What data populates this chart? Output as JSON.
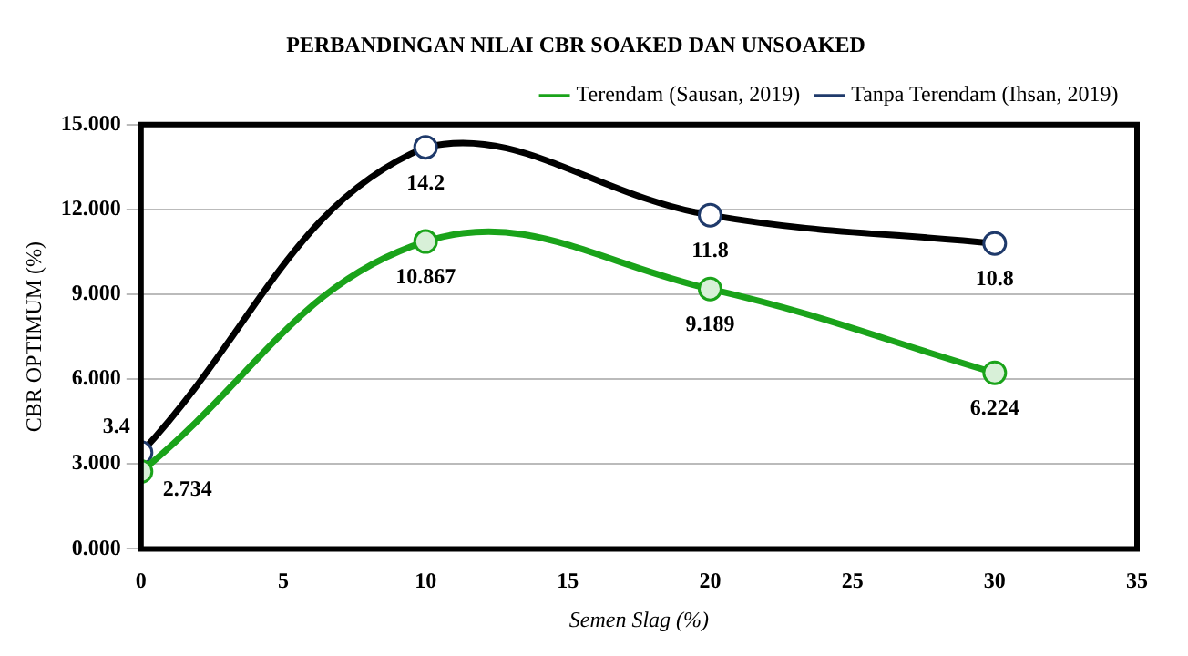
{
  "chart_data": {
    "type": "line",
    "title": "PERBANDINGAN NILAI CBR SOAKED DAN UNSOAKED",
    "xlabel": "Semen Slag (%)",
    "ylabel": "CBR OPTIMUM (%)",
    "x": [
      0,
      10,
      20,
      30
    ],
    "series": [
      {
        "name": "Terendam (Sausan, 2019)",
        "color": "#1aa31a",
        "values": [
          2.734,
          10.867,
          9.189,
          6.224
        ]
      },
      {
        "name": "Tanpa Terendam (Ihsan, 2019)",
        "color": "#000000",
        "values": [
          3.4,
          14.2,
          11.8,
          10.8
        ]
      }
    ],
    "xlim": [
      0,
      35
    ],
    "xticks": [
      0,
      5,
      10,
      15,
      20,
      25,
      30,
      35
    ],
    "ylim": [
      0,
      15
    ],
    "yticks": [
      {
        "value": 0,
        "label": "0.000"
      },
      {
        "value": 3,
        "label": "3.000"
      },
      {
        "value": 6,
        "label": "6.000"
      },
      {
        "value": 9,
        "label": "9.000"
      },
      {
        "value": 12,
        "label": "12.000"
      },
      {
        "value": 15,
        "label": "15.000"
      }
    ],
    "grid": "y",
    "legend": "top",
    "marker": "circle",
    "line_style": "solid",
    "data_labels": true
  }
}
